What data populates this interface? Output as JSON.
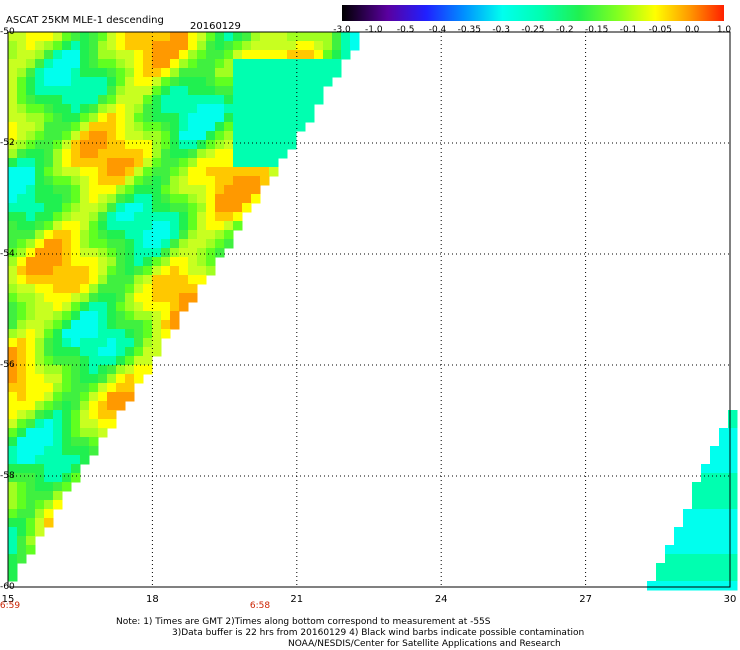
{
  "header": {
    "title": "ASCAT 25KM MLE-1 descending",
    "date": "20160129"
  },
  "colorbar": {
    "labels": [
      "-3.0",
      "-1.0",
      "-0.5",
      "-0.4",
      "-0.35",
      "-0.3",
      "-0.25",
      "-0.2",
      "-0.15",
      "-0.1",
      "-0.05",
      "0.0",
      "1.0"
    ],
    "colors": [
      "#300040",
      "#5a00a0",
      "#2020ff",
      "#0078ff",
      "#00c8ff",
      "#00ffee",
      "#00ffb0",
      "#20f050",
      "#60ff20",
      "#c0ff20",
      "#ffff00",
      "#ff9900",
      "#ff2000"
    ]
  },
  "axes": {
    "y_labels": [
      "-50",
      "-52",
      "-54",
      "-56",
      "-58",
      "-60"
    ],
    "x_labels": [
      "15",
      "18",
      "21",
      "24",
      "27",
      "30"
    ],
    "time_labels": [
      "6:59",
      "6:58"
    ],
    "ylim": [
      -60,
      -50
    ],
    "xlim": [
      15,
      30
    ]
  },
  "notes": {
    "line1": "Note: 1) Times are GMT 2)Times along bottom correspond to measurement at -55S",
    "line2": "3)Data buffer is 22 hrs from 20160129 4) Black wind barbs indicate possible contamination",
    "line3": "NOAA/NESDIS/Center for Satellite Applications and Research"
  }
}
